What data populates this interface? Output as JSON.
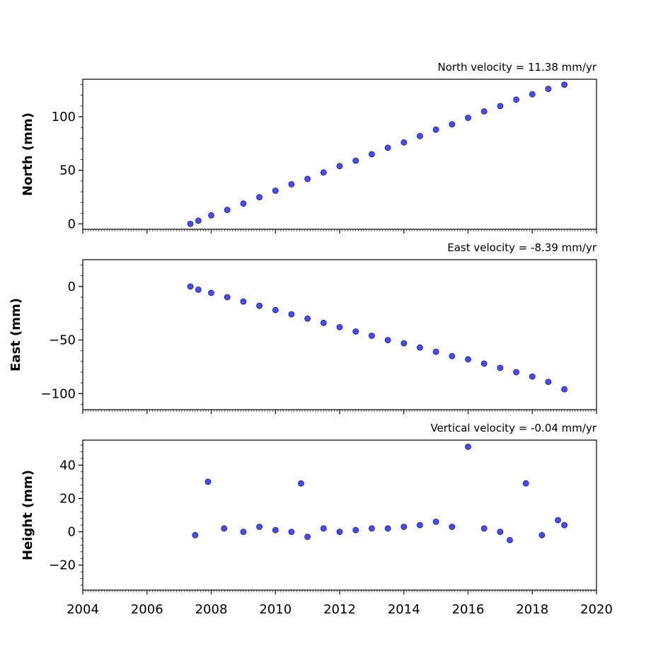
{
  "chart_data": [
    {
      "type": "scatter",
      "title": "North velocity = 11.38 mm/yr",
      "ylabel": "North (mm)",
      "xlim": [
        2004,
        2020
      ],
      "ylim": [
        -5,
        135
      ],
      "y_ticks": [
        0,
        50,
        100
      ],
      "x_tick_labels_shown": false,
      "series": [
        {
          "x": [
            2007.35,
            2007.6,
            2008.0,
            2008.5,
            2009.0,
            2009.5,
            2010.0,
            2010.5,
            2011.0,
            2011.5,
            2012.0,
            2012.5,
            2013.0,
            2013.5,
            2014.0,
            2014.5,
            2015.0,
            2015.5,
            2016.0,
            2016.5,
            2017.0,
            2017.5,
            2018.0,
            2018.5,
            2019.0
          ],
          "y": [
            0,
            3,
            8,
            13,
            19,
            25,
            31,
            37,
            42,
            48,
            54,
            59,
            65,
            71,
            76,
            82,
            88,
            93,
            99,
            105,
            110,
            116,
            121,
            126,
            130
          ]
        }
      ]
    },
    {
      "type": "scatter",
      "title": "East velocity = -8.39 mm/yr",
      "ylabel": "East (mm)",
      "xlim": [
        2004,
        2020
      ],
      "ylim": [
        -115,
        25
      ],
      "y_ticks": [
        0,
        -50,
        -100
      ],
      "y_tick_labels": [
        "0",
        "−50",
        "−100"
      ],
      "x_tick_labels_shown": false,
      "series": [
        {
          "x": [
            2007.35,
            2007.6,
            2008.0,
            2008.5,
            2009.0,
            2009.5,
            2010.0,
            2010.5,
            2011.0,
            2011.5,
            2012.0,
            2012.5,
            2013.0,
            2013.5,
            2014.0,
            2014.5,
            2015.0,
            2015.5,
            2016.0,
            2016.5,
            2017.0,
            2017.5,
            2018.0,
            2018.5,
            2019.0
          ],
          "y": [
            0,
            -3,
            -6,
            -10,
            -14,
            -18,
            -22,
            -26,
            -30,
            -34,
            -38,
            -42,
            -46,
            -50,
            -53,
            -57,
            -61,
            -65,
            -68,
            -72,
            -76,
            -80,
            -84,
            -89,
            -96
          ]
        }
      ]
    },
    {
      "type": "scatter",
      "title": "Vertical velocity = -0.04 mm/yr",
      "ylabel": "Height (mm)",
      "xlim": [
        2004,
        2020
      ],
      "ylim": [
        -35,
        55
      ],
      "y_ticks": [
        -20,
        0,
        20,
        40
      ],
      "y_tick_labels": [
        "−20",
        "0",
        "20",
        "40"
      ],
      "x_ticks": [
        2004,
        2006,
        2008,
        2010,
        2012,
        2014,
        2016,
        2018,
        2020
      ],
      "x_tick_labels": [
        "2004",
        "2006",
        "2008",
        "2010",
        "2012",
        "2014",
        "2016",
        "2018",
        "2020"
      ],
      "x_tick_labels_shown": true,
      "series": [
        {
          "x": [
            2007.5,
            2007.9,
            2008.4,
            2009.0,
            2009.5,
            2010.0,
            2010.5,
            2010.8,
            2011.0,
            2011.5,
            2012.0,
            2012.5,
            2013.0,
            2013.5,
            2014.0,
            2014.5,
            2015.0,
            2015.5,
            2016.0,
            2016.5,
            2017.0,
            2017.3,
            2017.8,
            2018.3,
            2018.8,
            2019.0
          ],
          "y": [
            -2,
            30,
            2,
            0,
            3,
            1,
            0,
            29,
            -3,
            2,
            0,
            1,
            2,
            2,
            3,
            4,
            6,
            3,
            51,
            2,
            0,
            -5,
            29,
            -2,
            7,
            4
          ]
        }
      ]
    }
  ],
  "style": {
    "marker_fill": "#4b4bf5",
    "marker_edge": "#1a1a6e"
  }
}
